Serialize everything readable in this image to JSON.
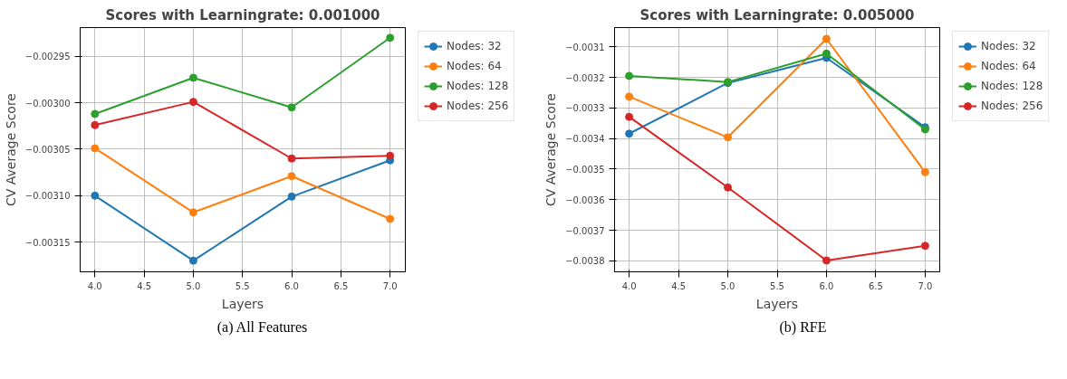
{
  "chart_data": [
    {
      "type": "line",
      "title": "Scores with Learningrate: 0.001000",
      "xlabel": "Layers",
      "ylabel": "CV Average Score",
      "x": [
        4,
        5,
        6,
        7
      ],
      "series": [
        {
          "name": "Nodes: 32",
          "color": "#1f77b4",
          "values": [
            -0.0031,
            -0.00317,
            -0.003101,
            -0.003062
          ]
        },
        {
          "name": "Nodes: 64",
          "color": "#ff7f0e",
          "values": [
            -0.003049,
            -0.003118,
            -0.003079,
            -0.003125
          ]
        },
        {
          "name": "Nodes: 128",
          "color": "#2ca02c",
          "values": [
            -0.003012,
            -0.002973,
            -0.003005,
            -0.00293
          ]
        },
        {
          "name": "Nodes: 256",
          "color": "#d62728",
          "values": [
            -0.003024,
            -0.002999,
            -0.00306,
            -0.003057
          ]
        }
      ],
      "xlim": [
        3.85,
        7.155
      ],
      "ylim": [
        -0.003182,
        -0.002919
      ],
      "xticks": [
        {
          "value": 4,
          "label": "4.0"
        },
        {
          "value": 4.5,
          "label": "4.5"
        },
        {
          "value": 5,
          "label": "5.0"
        },
        {
          "value": 5.5,
          "label": "5.5"
        },
        {
          "value": 6,
          "label": "6.0"
        },
        {
          "value": 6.5,
          "label": "6.5"
        },
        {
          "value": 7,
          "label": "7.0"
        }
      ],
      "yticks": [
        {
          "value": -0.00315,
          "label": "−0.00315"
        },
        {
          "value": -0.0031,
          "label": "−0.00310"
        },
        {
          "value": -0.00305,
          "label": "−0.00305"
        },
        {
          "value": -0.003,
          "label": "−0.00300"
        },
        {
          "value": -0.00295,
          "label": "−0.00295"
        }
      ],
      "grid": true,
      "legend": "right",
      "marker": "circle",
      "line_style": "solid",
      "annotations": [
        "(a) All Features"
      ]
    },
    {
      "type": "line",
      "title": "Scores with Learningrate: 0.005000",
      "xlabel": "Layers",
      "ylabel": "CV Average Score",
      "x": [
        4,
        5,
        6,
        7
      ],
      "series": [
        {
          "name": "Nodes: 32",
          "color": "#1f77b4",
          "values": [
            -0.003384,
            -0.003218,
            -0.003136,
            -0.003363
          ]
        },
        {
          "name": "Nodes: 64",
          "color": "#ff7f0e",
          "values": [
            -0.003263,
            -0.003396,
            -0.003074,
            -0.00351
          ]
        },
        {
          "name": "Nodes: 128",
          "color": "#2ca02c",
          "values": [
            -0.003195,
            -0.003215,
            -0.003122,
            -0.00337
          ]
        },
        {
          "name": "Nodes: 256",
          "color": "#d62728",
          "values": [
            -0.003329,
            -0.00356,
            -0.003799,
            -0.003751
          ]
        }
      ],
      "xlim": [
        3.852,
        7.148
      ],
      "ylim": [
        -0.003836,
        -0.003037
      ],
      "xticks": [
        {
          "value": 4,
          "label": "4.0"
        },
        {
          "value": 4.5,
          "label": "4.5"
        },
        {
          "value": 5,
          "label": "5.0"
        },
        {
          "value": 5.5,
          "label": "5.5"
        },
        {
          "value": 6,
          "label": "6.0"
        },
        {
          "value": 6.5,
          "label": "6.5"
        },
        {
          "value": 7,
          "label": "7.0"
        }
      ],
      "yticks": [
        {
          "value": -0.0038,
          "label": "−0.0038"
        },
        {
          "value": -0.0037,
          "label": "−0.0037"
        },
        {
          "value": -0.0036,
          "label": "−0.0036"
        },
        {
          "value": -0.0035,
          "label": "−0.0035"
        },
        {
          "value": -0.0034,
          "label": "−0.0034"
        },
        {
          "value": -0.0033,
          "label": "−0.0033"
        },
        {
          "value": -0.0032,
          "label": "−0.0032"
        },
        {
          "value": -0.0031,
          "label": "−0.0031"
        }
      ],
      "grid": true,
      "legend": "right",
      "marker": "circle",
      "line_style": "solid",
      "annotations": [
        "(b) RFE"
      ]
    }
  ]
}
